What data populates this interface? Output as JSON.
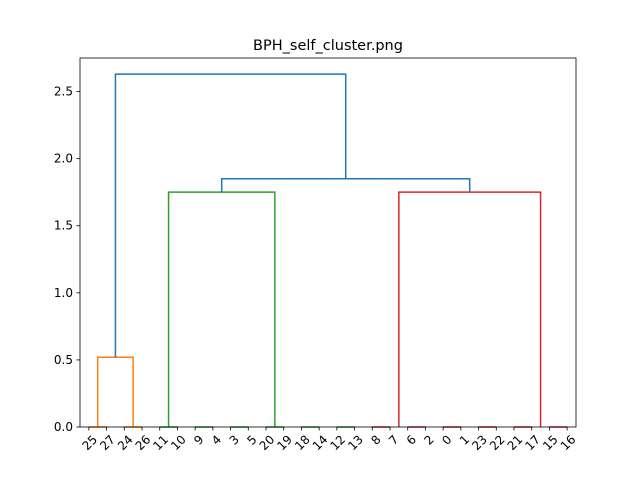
{
  "chart_data": {
    "type": "dendrogram",
    "title": "BPH_self_cluster.png",
    "xlabel": "",
    "ylabel": "",
    "ylim": [
      0,
      2.75
    ],
    "yticks": [
      0.0,
      0.5,
      1.0,
      1.5,
      2.0,
      2.5
    ],
    "ytick_labels": [
      "0.0",
      "0.5",
      "1.0",
      "1.5",
      "2.0",
      "2.5"
    ],
    "grid": false,
    "leaf_order": [
      "25",
      "27",
      "24",
      "26",
      "11",
      "10",
      "9",
      "4",
      "3",
      "5",
      "20",
      "19",
      "18",
      "14",
      "12",
      "13",
      "8",
      "7",
      "6",
      "2",
      "0",
      "1",
      "23",
      "22",
      "21",
      "17",
      "15",
      "16"
    ],
    "colors": {
      "above_threshold": "#1f77b4",
      "cluster_orange": "#ff7f0e",
      "cluster_green": "#2ca02c",
      "cluster_red": "#d62728"
    },
    "links": [
      {
        "left": {
          "kind": "leaf",
          "pos": 1
        },
        "right": {
          "kind": "leaf",
          "pos": 2
        },
        "height": 0.0,
        "color": "cluster_orange"
      },
      {
        "left": {
          "kind": "leaf",
          "pos": 3
        },
        "right": {
          "kind": "leaf",
          "pos": 4
        },
        "height": 0.0,
        "color": "cluster_orange"
      },
      {
        "left": {
          "kind": "center",
          "value": 1.5
        },
        "right": {
          "kind": "center",
          "value": 3.5
        },
        "height": 0.52,
        "color": "cluster_orange"
      },
      {
        "left": {
          "kind": "leaf",
          "pos": 5
        },
        "right": {
          "kind": "leaf",
          "pos": 6
        },
        "height": 0.0,
        "color": "cluster_green"
      },
      {
        "left": {
          "kind": "leaf",
          "pos": 7
        },
        "right": {
          "kind": "leaf",
          "pos": 8
        },
        "height": 0.0,
        "color": "cluster_green"
      },
      {
        "left": {
          "kind": "leaf",
          "pos": 9
        },
        "right": {
          "kind": "leaf",
          "pos": 10
        },
        "height": 0.0,
        "color": "cluster_green"
      },
      {
        "left": {
          "kind": "leaf",
          "pos": 11
        },
        "right": {
          "kind": "leaf",
          "pos": 12
        },
        "height": 0.0,
        "color": "cluster_green"
      },
      {
        "left": {
          "kind": "leaf",
          "pos": 13
        },
        "right": {
          "kind": "leaf",
          "pos": 14
        },
        "height": 0.0,
        "color": "cluster_green"
      },
      {
        "left": {
          "kind": "leaf",
          "pos": 15
        },
        "right": {
          "kind": "leaf",
          "pos": 16
        },
        "height": 0.0,
        "color": "cluster_green"
      },
      {
        "left": {
          "kind": "center",
          "value": 5.5
        },
        "right": {
          "kind": "center",
          "value": 11.5
        },
        "height": 1.75,
        "color": "cluster_green"
      },
      {
        "left": {
          "kind": "leaf",
          "pos": 17
        },
        "right": {
          "kind": "leaf",
          "pos": 18
        },
        "height": 0.0,
        "color": "cluster_red"
      },
      {
        "left": {
          "kind": "leaf",
          "pos": 19
        },
        "right": {
          "kind": "leaf",
          "pos": 20
        },
        "height": 0.0,
        "color": "cluster_red"
      },
      {
        "left": {
          "kind": "leaf",
          "pos": 21
        },
        "right": {
          "kind": "leaf",
          "pos": 22
        },
        "height": 0.0,
        "color": "cluster_red"
      },
      {
        "left": {
          "kind": "leaf",
          "pos": 23
        },
        "right": {
          "kind": "leaf",
          "pos": 24
        },
        "height": 0.0,
        "color": "cluster_red"
      },
      {
        "left": {
          "kind": "leaf",
          "pos": 25
        },
        "right": {
          "kind": "leaf",
          "pos": 26
        },
        "height": 0.0,
        "color": "cluster_red"
      },
      {
        "left": {
          "kind": "leaf",
          "pos": 27
        },
        "right": {
          "kind": "leaf",
          "pos": 28
        },
        "height": 0.0,
        "color": "cluster_red"
      },
      {
        "left": {
          "kind": "center",
          "value": 18.5
        },
        "right": {
          "kind": "center",
          "value": 26.5
        },
        "height": 1.75,
        "color": "cluster_red"
      },
      {
        "left": {
          "kind": "center",
          "value": 8.5
        },
        "right": {
          "kind": "center",
          "value": 22.5
        },
        "height": 1.85,
        "color": "above_threshold"
      },
      {
        "left": {
          "kind": "center",
          "value": 2.5
        },
        "right": {
          "kind": "center",
          "value": 15.5
        },
        "height": 2.63,
        "color": "above_threshold"
      }
    ]
  }
}
